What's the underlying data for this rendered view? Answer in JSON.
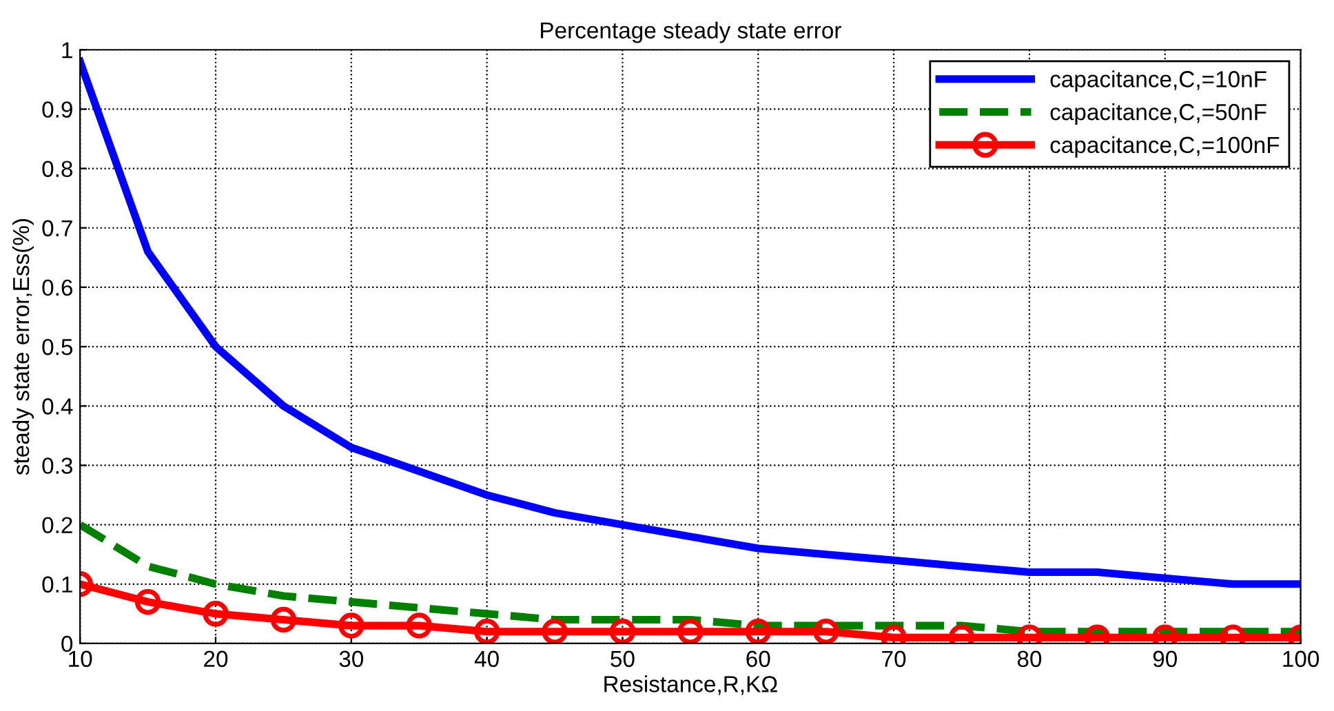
{
  "chart_data": {
    "type": "line",
    "title": "Percentage steady state error",
    "xlabel": "Resistance,R,KΩ",
    "ylabel": "steady state error,Ess(%)",
    "x": [
      10,
      15,
      20,
      25,
      30,
      35,
      40,
      45,
      50,
      55,
      60,
      65,
      70,
      75,
      80,
      85,
      90,
      95,
      100
    ],
    "series": [
      {
        "name": "capacitance,C,=10nF",
        "color": "#0000ff",
        "line_style": "solid",
        "marker": "none",
        "values": [
          0.98,
          0.66,
          0.5,
          0.4,
          0.33,
          0.29,
          0.25,
          0.22,
          0.2,
          0.18,
          0.16,
          0.15,
          0.14,
          0.13,
          0.12,
          0.12,
          0.11,
          0.1,
          0.1
        ]
      },
      {
        "name": "capacitance,C,=50nF",
        "color": "#008000",
        "line_style": "dashed",
        "marker": "none",
        "values": [
          0.2,
          0.13,
          0.1,
          0.08,
          0.07,
          0.06,
          0.05,
          0.04,
          0.04,
          0.04,
          0.03,
          0.03,
          0.03,
          0.03,
          0.02,
          0.02,
          0.02,
          0.02,
          0.02
        ]
      },
      {
        "name": "capacitance,C,=100nF",
        "color": "#ff0000",
        "line_style": "solid",
        "marker": "circle",
        "values": [
          0.1,
          0.07,
          0.05,
          0.04,
          0.03,
          0.03,
          0.02,
          0.02,
          0.02,
          0.02,
          0.02,
          0.02,
          0.01,
          0.01,
          0.01,
          0.01,
          0.01,
          0.01,
          0.01
        ]
      }
    ],
    "xlim": [
      10,
      100
    ],
    "xticks": [
      10,
      20,
      30,
      40,
      50,
      60,
      70,
      80,
      90,
      100
    ],
    "ylim": [
      0,
      1
    ],
    "yticks": [
      0,
      0.1,
      0.2,
      0.3,
      0.4,
      0.5,
      0.6,
      0.7,
      0.8,
      0.9,
      1
    ],
    "grid": true,
    "legend": "top right"
  }
}
